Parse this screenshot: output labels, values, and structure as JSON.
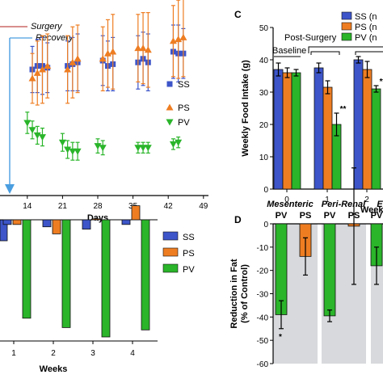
{
  "colors": {
    "SS": "#3d55c9",
    "PS": "#ee7d22",
    "PV": "#2ab52a",
    "err": "#000000",
    "surgery": "#c24b4b",
    "recovery": "#4a9ee0",
    "shade": "#d7d9dc"
  },
  "panels": [
    {
      "id": "timecourse",
      "annotations": {
        "surgery": "Surgery",
        "recovery": "Recovery"
      },
      "chart_data": {
        "type": "scatter",
        "xlabel": "Days",
        "x_ticks": [
          "14",
          "21",
          "28",
          "35",
          "42",
          "49"
        ],
        "xlim": [
          7,
          49
        ],
        "legend": [
          "SS",
          "PS",
          "PV"
        ],
        "series": [
          {
            "name": "SS",
            "x": [
              15,
              16,
              17,
              18,
              22,
              23,
              24,
              29,
              30,
              31,
              36,
              37,
              38,
              43,
              44,
              45
            ],
            "y": [
              0.7,
              0.72,
              0.72,
              0.71,
              0.72,
              0.73,
              0.74,
              0.75,
              0.72,
              0.73,
              0.74,
              0.76,
              0.74,
              0.8,
              0.79,
              0.79
            ],
            "err": [
              0.13,
              0.15,
              0.16,
              0.14,
              0.14,
              0.15,
              0.16,
              0.14,
              0.14,
              0.15,
              0.15,
              0.15,
              0.16,
              0.15,
              0.16,
              0.14
            ]
          },
          {
            "name": "PS",
            "x": [
              15,
              16,
              17,
              18,
              22,
              23,
              24,
              29,
              30,
              31,
              36,
              37,
              38,
              43,
              44,
              45
            ],
            "y": [
              0.65,
              0.68,
              0.7,
              0.72,
              0.7,
              0.74,
              0.76,
              0.76,
              0.79,
              0.8,
              0.82,
              0.82,
              0.81,
              0.86,
              0.87,
              0.88
            ],
            "err": [
              0.14,
              0.18,
              0.19,
              0.18,
              0.19,
              0.2,
              0.19,
              0.18,
              0.19,
              0.21,
              0.19,
              0.2,
              0.21,
              0.2,
              0.22,
              0.22
            ]
          },
          {
            "name": "PV",
            "x": [
              14,
              15,
              16,
              17,
              21,
              22,
              23,
              24,
              28,
              29,
              36,
              37,
              38,
              43,
              44
            ],
            "y": [
              0.4,
              0.36,
              0.33,
              0.32,
              0.29,
              0.25,
              0.24,
              0.24,
              0.27,
              0.26,
              0.26,
              0.26,
              0.26,
              0.28,
              0.29
            ],
            "err": [
              0.06,
              0.05,
              0.05,
              0.05,
              0.05,
              0.05,
              0.05,
              0.05,
              0.04,
              0.04,
              0.03,
              0.03,
              0.03,
              0.03,
              0.03
            ]
          }
        ]
      }
    },
    {
      "id": "weekly-change",
      "chart_data": {
        "type": "bar",
        "xlabel": "Weeks",
        "categories": [
          "1",
          "2",
          "3",
          "4"
        ],
        "legend": [
          "SS",
          "PS",
          "PV"
        ],
        "series": [
          {
            "name": "SS",
            "values": [
              -0.1,
              -0.15,
              -0.2,
              -0.1
            ]
          },
          {
            "name": "PS",
            "values": [
              -0.1,
              -0.3,
              0.02,
              0.3
            ]
          },
          {
            "name": "PV",
            "values": [
              -2.1,
              -2.3,
              -2.5,
              -2.35
            ]
          }
        ]
      }
    },
    {
      "id": "food-intake",
      "letter": "C",
      "annotations": {
        "baseline": "Baseline",
        "post": "Post-Surgery"
      },
      "chart_data": {
        "type": "bar",
        "xlabel": "Week",
        "ylabel": "Weekly Food Intake (g)",
        "ylim": [
          0,
          50
        ],
        "y_ticks": [
          "0",
          "10",
          "20",
          "30",
          "40",
          "50"
        ],
        "categories": [
          "0",
          "1",
          "2"
        ],
        "legend": [
          "SS (n",
          "PS (n",
          "PV (n"
        ],
        "series": [
          {
            "name": "SS",
            "values": [
              37,
              37.5,
              40
            ],
            "err": [
              2,
              1.5,
              1
            ]
          },
          {
            "name": "PS",
            "values": [
              36,
              31.5,
              37
            ],
            "err": [
              1.5,
              2,
              2.5
            ]
          },
          {
            "name": "PV",
            "values": [
              36,
              20,
              31
            ],
            "err": [
              1,
              3.5,
              1
            ]
          }
        ],
        "annotations": [
          {
            "category": "1",
            "series": "PV",
            "text": "**"
          },
          {
            "category": "2",
            "series": "PV",
            "text": "**"
          }
        ]
      }
    },
    {
      "id": "fat-reduction",
      "letter": "D",
      "chart_data": {
        "type": "bar",
        "ylabel": [
          "Reduction in Fat",
          "(% of Control)"
        ],
        "ylim": [
          -60,
          0
        ],
        "y_ticks": [
          "0",
          "-10",
          "-20",
          "-30",
          "-40",
          "-50",
          "-60"
        ],
        "groups": [
          {
            "name": "Mesenteric",
            "labels": [
              "PV",
              "PS"
            ],
            "series": [
              "PV",
              "PS"
            ],
            "values": [
              -39,
              -14
            ],
            "err": [
              6,
              8
            ],
            "annot": [
              "*",
              ""
            ]
          },
          {
            "name": "Peri-Renal",
            "labels": [
              "PV",
              "PS"
            ],
            "series": [
              "PV",
              "PS"
            ],
            "values": [
              -39.5,
              -1
            ],
            "err": [
              2.5,
              25
            ],
            "annot": [
              "",
              ""
            ]
          },
          {
            "name": "E",
            "labels": [
              "PV"
            ],
            "series": [
              "PV"
            ],
            "values": [
              -18
            ],
            "err": [
              8
            ],
            "annot": [
              ""
            ]
          }
        ]
      }
    }
  ]
}
